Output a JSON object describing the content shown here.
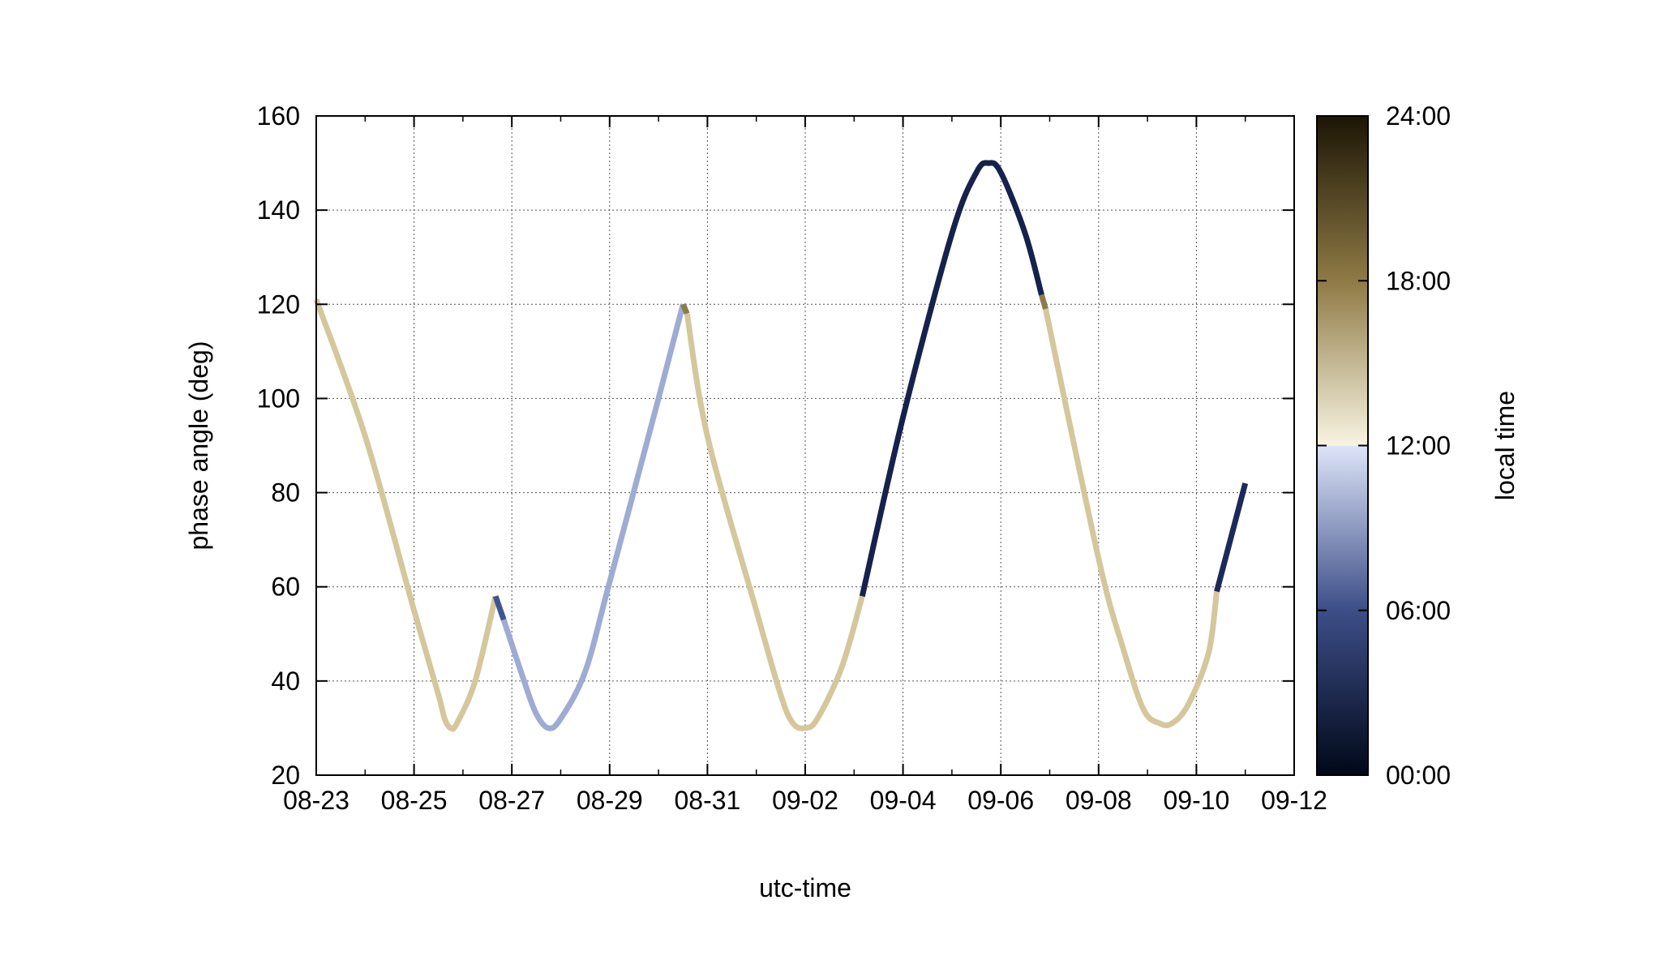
{
  "chart_data": {
    "type": "line",
    "xlabel": "utc-time",
    "ylabel": "phase angle (deg)",
    "xlim": [
      "08-23",
      "09-12"
    ],
    "ylim": [
      20,
      160
    ],
    "x_ticks": [
      "08-23",
      "08-25",
      "08-27",
      "08-29",
      "08-31",
      "09-02",
      "09-04",
      "09-06",
      "09-08",
      "09-10",
      "09-12"
    ],
    "y_ticks": [
      20,
      40,
      60,
      80,
      100,
      120,
      140,
      160
    ],
    "grid": true,
    "colorbar": {
      "label": "local time",
      "range": [
        "00:00",
        "24:00"
      ],
      "ticks": [
        "00:00",
        "06:00",
        "12:00",
        "18:00",
        "24:00"
      ],
      "colors": {
        "00:00": "#000818",
        "06:00": "#3d4e88",
        "11:59": "#dde4f8",
        "12:00": "#f8f4e2",
        "18:00": "#8f7a45",
        "24:00": "#1c1505"
      }
    },
    "series": [
      {
        "color": "#d5c79c",
        "points": [
          [
            "08-23 00:00",
            121
          ],
          [
            "08-24 00:00",
            92
          ],
          [
            "08-25 00:00",
            55
          ],
          [
            "08-25 12:00",
            37
          ],
          [
            "08-25 15:00",
            32
          ],
          [
            "08-25 18:00",
            30
          ],
          [
            "08-25 21:00",
            31
          ],
          [
            "08-26 06:00",
            40
          ],
          [
            "08-26 16:00",
            58
          ]
        ]
      },
      {
        "color": "#3f5592",
        "points": [
          [
            "08-26 16:00",
            58
          ],
          [
            "08-26 20:00",
            53
          ]
        ]
      },
      {
        "color": "#9eabd3",
        "points": [
          [
            "08-26 20:00",
            53
          ],
          [
            "08-27 06:00",
            40
          ],
          [
            "08-27 12:00",
            33
          ],
          [
            "08-27 18:00",
            30
          ],
          [
            "08-28 00:00",
            32
          ],
          [
            "08-28 12:00",
            42
          ],
          [
            "08-29 00:00",
            61
          ],
          [
            "08-30 00:00",
            100
          ],
          [
            "08-30 12:00",
            120
          ]
        ]
      },
      {
        "color": "#8e7b4a",
        "points": [
          [
            "08-30 12:00",
            120
          ],
          [
            "08-30 14:00",
            118
          ]
        ]
      },
      {
        "color": "#d5c79c",
        "points": [
          [
            "08-30 14:00",
            118
          ],
          [
            "08-31 00:00",
            92
          ],
          [
            "09-01 00:00",
            55
          ],
          [
            "09-01 12:00",
            37
          ],
          [
            "09-01 18:00",
            31
          ],
          [
            "09-02 00:00",
            30
          ],
          [
            "09-02 06:00",
            32
          ],
          [
            "09-02 18:00",
            43
          ],
          [
            "09-03 04:00",
            58
          ]
        ]
      },
      {
        "color": "#16224c",
        "points": [
          [
            "09-03 04:00",
            58
          ],
          [
            "09-04 00:00",
            96
          ],
          [
            "09-05 00:00",
            135
          ],
          [
            "09-05 12:00",
            148
          ],
          [
            "09-05 18:00",
            150
          ],
          [
            "09-06 00:00",
            148
          ],
          [
            "09-06 12:00",
            135
          ],
          [
            "09-06 20:00",
            122
          ]
        ]
      },
      {
        "color": "#8e7b4a",
        "points": [
          [
            "09-06 20:00",
            122
          ],
          [
            "09-06 22:00",
            119
          ]
        ]
      },
      {
        "color": "#d5c79c",
        "points": [
          [
            "09-06 22:00",
            119
          ],
          [
            "09-08 00:00",
            66
          ],
          [
            "09-08 12:00",
            47
          ],
          [
            "09-08 22:00",
            34
          ],
          [
            "09-09 06:00",
            31
          ],
          [
            "09-09 12:00",
            31
          ],
          [
            "09-09 20:00",
            35
          ],
          [
            "09-10 06:00",
            46
          ],
          [
            "09-10 10:00",
            59
          ]
        ]
      },
      {
        "color": "#1c2a5a",
        "points": [
          [
            "09-10 10:00",
            59
          ],
          [
            "09-11 00:00",
            82
          ]
        ]
      }
    ]
  }
}
